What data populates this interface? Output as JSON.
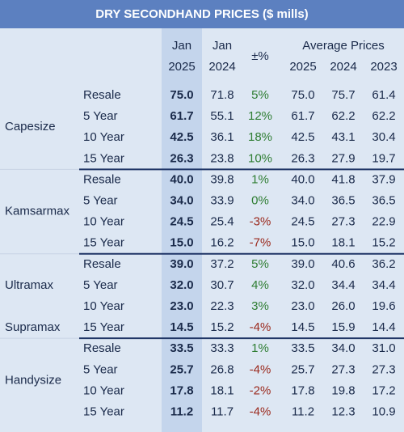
{
  "title": "DRY SECONDHAND PRICES ($ mills)",
  "header": {
    "jan_2025": [
      "Jan",
      "2025"
    ],
    "jan_2024": [
      "Jan",
      "2024"
    ],
    "change": "±%",
    "average": "Average Prices",
    "average_years": [
      "2025",
      "2024",
      "2023"
    ]
  },
  "groups": [
    {
      "names": [
        "Capesize"
      ],
      "rows": [
        [
          "Resale",
          "75.0",
          "71.8",
          "5%",
          "75.0",
          "75.7",
          "61.4"
        ],
        [
          "5 Year",
          "61.7",
          "55.1",
          "12%",
          "61.7",
          "62.2",
          "62.2"
        ],
        [
          "10 Year",
          "42.5",
          "36.1",
          "18%",
          "42.5",
          "43.1",
          "30.4"
        ],
        [
          "15 Year",
          "26.3",
          "23.8",
          "10%",
          "26.3",
          "27.9",
          "19.7"
        ]
      ]
    },
    {
      "names": [
        "Kamsarmax"
      ],
      "rows": [
        [
          "Resale",
          "40.0",
          "39.8",
          "1%",
          "40.0",
          "41.8",
          "37.9"
        ],
        [
          "5 Year",
          "34.0",
          "33.9",
          "0%",
          "34.0",
          "36.5",
          "36.5"
        ],
        [
          "10 Year",
          "24.5",
          "25.4",
          "-3%",
          "24.5",
          "27.3",
          "22.9"
        ],
        [
          "15 Year",
          "15.0",
          "16.2",
          "-7%",
          "15.0",
          "18.1",
          "15.2"
        ]
      ]
    },
    {
      "names": [
        "Ultramax",
        "Supramax"
      ],
      "rows": [
        [
          "Resale",
          "39.0",
          "37.2",
          "5%",
          "39.0",
          "40.6",
          "36.2"
        ],
        [
          "5 Year",
          "32.0",
          "30.7",
          "4%",
          "32.0",
          "34.4",
          "34.4"
        ],
        [
          "10 Year",
          "23.0",
          "22.3",
          "3%",
          "23.0",
          "26.0",
          "19.6"
        ],
        [
          "15 Year",
          "14.5",
          "15.2",
          "-4%",
          "14.5",
          "15.9",
          "14.4"
        ]
      ]
    },
    {
      "names": [
        "Handysize"
      ],
      "rows": [
        [
          "Resale",
          "33.5",
          "33.3",
          "1%",
          "33.5",
          "34.0",
          "31.0"
        ],
        [
          "5 Year",
          "25.7",
          "26.8",
          "-4%",
          "25.7",
          "27.3",
          "27.3"
        ],
        [
          "10 Year",
          "17.8",
          "18.1",
          "-2%",
          "17.8",
          "19.8",
          "17.2"
        ],
        [
          "15 Year",
          "11.2",
          "11.7",
          "-4%",
          "11.2",
          "12.3",
          "10.9"
        ]
      ]
    }
  ]
}
